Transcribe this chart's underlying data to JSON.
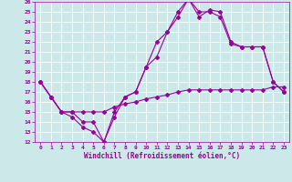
{
  "background_color": "#cce8e8",
  "grid_color": "#ffffff",
  "line_color": "#990099",
  "xlabel": "Windchill (Refroidissement éolien,°C)",
  "xlim": [
    -0.5,
    23.5
  ],
  "ylim": [
    12,
    26
  ],
  "xticks": [
    0,
    1,
    2,
    3,
    4,
    5,
    6,
    7,
    8,
    9,
    10,
    11,
    12,
    13,
    14,
    15,
    16,
    17,
    18,
    19,
    20,
    21,
    22,
    23
  ],
  "yticks": [
    12,
    13,
    14,
    15,
    16,
    17,
    18,
    19,
    20,
    21,
    22,
    23,
    24,
    25,
    26
  ],
  "line1_x": [
    0,
    1,
    2,
    3,
    4,
    5,
    6,
    7,
    8,
    9,
    10,
    11,
    12,
    13,
    14,
    15,
    16,
    17,
    18,
    19,
    20,
    21,
    22,
    23
  ],
  "line1_y": [
    18.0,
    16.5,
    15.0,
    14.5,
    13.5,
    13.0,
    12.0,
    14.5,
    16.5,
    17.0,
    19.5,
    22.0,
    23.0,
    25.0,
    26.3,
    25.0,
    25.0,
    24.5,
    21.8,
    21.5,
    21.5,
    21.5,
    18.0,
    17.0
  ],
  "line2_x": [
    0,
    1,
    2,
    3,
    4,
    5,
    6,
    7,
    8,
    9,
    10,
    11,
    12,
    13,
    14,
    15,
    16,
    17,
    18,
    19,
    20,
    21,
    22,
    23
  ],
  "line2_y": [
    18.0,
    16.5,
    15.0,
    15.0,
    14.0,
    14.0,
    12.0,
    15.0,
    16.5,
    17.0,
    19.5,
    20.5,
    23.0,
    24.5,
    26.3,
    24.5,
    25.2,
    25.0,
    22.0,
    21.5,
    21.5,
    21.5,
    18.0,
    17.0
  ],
  "line3_x": [
    0,
    1,
    2,
    3,
    4,
    5,
    6,
    7,
    8,
    9,
    10,
    11,
    12,
    13,
    14,
    15,
    16,
    17,
    18,
    19,
    20,
    21,
    22,
    23
  ],
  "line3_y": [
    18.0,
    16.5,
    15.0,
    15.0,
    15.0,
    15.0,
    15.0,
    15.5,
    15.8,
    16.0,
    16.3,
    16.5,
    16.7,
    17.0,
    17.2,
    17.2,
    17.2,
    17.2,
    17.2,
    17.2,
    17.2,
    17.2,
    17.5,
    17.5
  ],
  "marker": "D",
  "markersize": 2,
  "linewidth": 0.8,
  "tick_fontsize": 4.5,
  "xlabel_fontsize": 5.5
}
